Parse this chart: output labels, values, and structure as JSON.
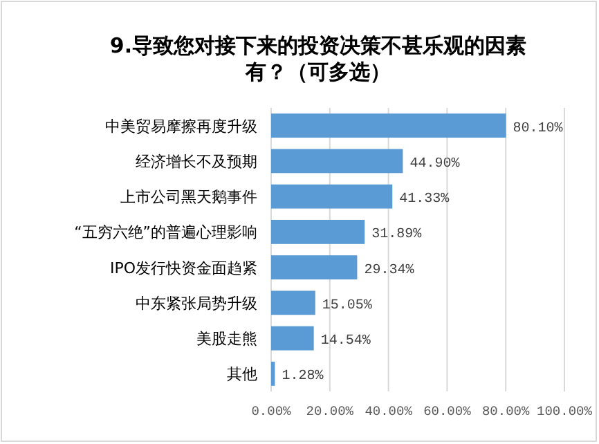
{
  "chart_data": {
    "type": "bar",
    "orientation": "horizontal",
    "title": "9.导致您对接下来的投资决策不甚乐观的因素有？（可多选）",
    "categories": [
      "中美贸易摩擦再度升级",
      "经济增长不及预期",
      "上市公司黑天鹅事件",
      "“五穷六绝”的普遍心理影响",
      "IPO发行快资金面趋紧",
      "中东紧张局势升级",
      "美股走熊",
      "其他"
    ],
    "values": [
      80.1,
      44.9,
      41.33,
      31.89,
      29.34,
      15.05,
      14.54,
      1.28
    ],
    "value_labels": [
      "80.10%",
      "44.90%",
      "41.33%",
      "31.89%",
      "29.34%",
      "15.05%",
      "14.54%",
      "1.28%"
    ],
    "color": "#5b9bd5",
    "xlim": [
      0,
      100
    ],
    "xticks": [
      {
        "value": 0,
        "label": "0.00%"
      },
      {
        "value": 20,
        "label": "20.00%"
      },
      {
        "value": 40,
        "label": "40.00%"
      },
      {
        "value": 60,
        "label": "60.00%"
      },
      {
        "value": 80,
        "label": "80.00%"
      },
      {
        "value": 100,
        "label": "100.00%"
      }
    ],
    "grid": "x"
  }
}
